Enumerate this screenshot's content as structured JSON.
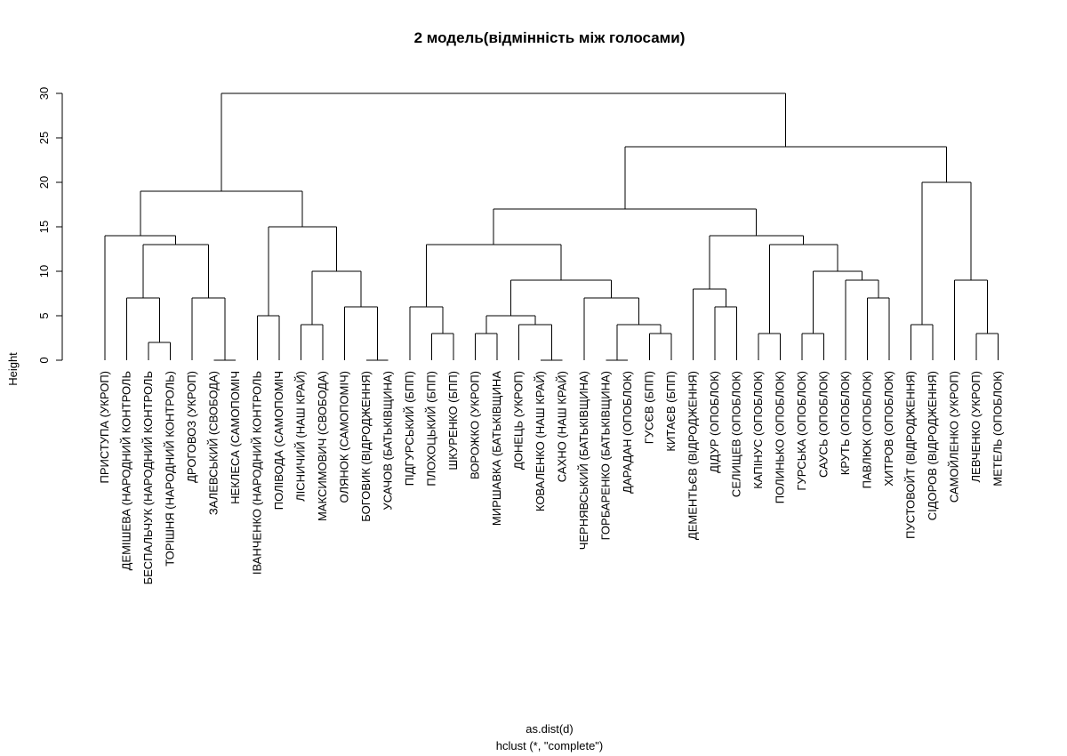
{
  "chart_data": {
    "type": "dendrogram",
    "title": "2 модель(відмінність між голосами)",
    "ylabel": "Height",
    "xlabel": "as.dist(d)",
    "sub": "hclust (*, \"complete\")",
    "ylim": [
      0,
      30
    ],
    "yticks": [
      0,
      5,
      10,
      15,
      20,
      25,
      30
    ],
    "labels": [
      "ПРИСТУПА (УКРОП)",
      "ДЕМІШЕВА (НАРОДНИЙ КОНТРОЛЬ",
      "БЕСПАЛЬЧУК (НАРОДНИЙ КОНТРОЛЬ",
      "ТОРІШНЯ (НАРОДНИЙ КОНТРОЛЬ)",
      "ДРОГОВОЗ (УКРОП)",
      "ЗАЛЕВСЬКИЙ (СВОБОДА)",
      "НЕКЛЕСА (САМОПОМІЧ",
      "ІВАНЧЕНКО (НАРОДНИЙ КОНТРОЛЬ",
      "ПОЛІВОДА (САМОПОМІЧ",
      "ЛІСНИЧИЙ (НАШ КРАЙ)",
      "МАКСИМОВИЧ (СВОБОДА)",
      "ОЛЯНОК (САМОПОМІЧ)",
      "БОГОВИК (ВІДРОДЖЕННЯ)",
      "УСАЧОВ (БАТЬКІВЩИНА)",
      "ПІДГУРСЬКИЙ (БПП)",
      "ПЛОХОЦЬКИЙ (БПП)",
      "ШКУРЕНКО (БПП)",
      "ВОРОЖКО (УКРОП)",
      "МИРШАВКА (БАТЬКІВЩИНА",
      "ДОНЕЦЬ (УКРОП)",
      "КОВАЛЕНКО (НАШ КРАЙ)",
      "САХНО (НАШ КРАЙ)",
      "ЧЕРНЯВСЬКИЙ (БАТЬКІВЩИНА)",
      "ГОРБАРЕНКО (БАТЬКІВЩИНА)",
      "ДАРАДАН (ОПОБЛОК)",
      "ГУСЄВ (БПП)",
      "КИТАЄВ (БПП)",
      "ДЕМЕНТЬЄВ (ВІДРОДЖЕННЯ)",
      "ДІДУР (ОПОБЛОК)",
      "СЕЛИЩЕВ (ОПОБЛОК)",
      "КАПІНУС (ОПОБЛОК)",
      "ПОЛИНЬКО (ОПОБЛОК)",
      "ГУРСЬКА (ОПОБЛОК)",
      "САУСЬ (ОПОБЛОК)",
      "КРУТЬ (ОПОБЛОК)",
      "ПАВЛЮК (ОПОБЛОК)",
      "ХИТРОВ (ОПОБЛОК)",
      "ПУСТОВОЙТ (ВІДРОДЖЕННЯ)",
      "СІДОРОВ (ВІДРОДЖЕННЯ)",
      "САМОЙЛЕНКО (УКРОП)",
      "ЛЕВЧЕНКО (УКРОП)",
      "МЕТЕЛЬ (ОПОБЛОК)"
    ],
    "merges": [
      {
        "id": "c1",
        "left": 2,
        "right": 3,
        "height": 2
      },
      {
        "id": "c2",
        "left": 1,
        "right": "c1",
        "height": 7
      },
      {
        "id": "c3",
        "left": 5,
        "right": 6,
        "height": 0
      },
      {
        "id": "c4",
        "left": 4,
        "right": "c3",
        "height": 7
      },
      {
        "id": "c5",
        "left": "c2",
        "right": "c4",
        "height": 13
      },
      {
        "id": "c6",
        "left": 0,
        "right": "c5",
        "height": 14
      },
      {
        "id": "c7",
        "left": 7,
        "right": 8,
        "height": 5
      },
      {
        "id": "c8",
        "left": 9,
        "right": 10,
        "height": 4
      },
      {
        "id": "c9",
        "left": 12,
        "right": 13,
        "height": 0
      },
      {
        "id": "c10",
        "left": 11,
        "right": "c9",
        "height": 6
      },
      {
        "id": "c11",
        "left": "c8",
        "right": "c10",
        "height": 10
      },
      {
        "id": "c12",
        "left": "c7",
        "right": "c11",
        "height": 15
      },
      {
        "id": "c13",
        "left": "c6",
        "right": "c12",
        "height": 19
      },
      {
        "id": "c14",
        "left": 15,
        "right": 16,
        "height": 3
      },
      {
        "id": "c15",
        "left": 14,
        "right": "c14",
        "height": 6
      },
      {
        "id": "c16",
        "left": 17,
        "right": 18,
        "height": 3
      },
      {
        "id": "c17",
        "left": 20,
        "right": 21,
        "height": 0
      },
      {
        "id": "c18",
        "left": 19,
        "right": "c17",
        "height": 4
      },
      {
        "id": "c19",
        "left": "c16",
        "right": "c18",
        "height": 5
      },
      {
        "id": "c20",
        "left": 23,
        "right": 24,
        "height": 0
      },
      {
        "id": "c21",
        "left": 25,
        "right": 26,
        "height": 3
      },
      {
        "id": "c22",
        "left": "c20",
        "right": "c21",
        "height": 4
      },
      {
        "id": "c23",
        "left": 22,
        "right": "c22",
        "height": 7
      },
      {
        "id": "c24",
        "left": "c19",
        "right": "c23",
        "height": 9
      },
      {
        "id": "c25",
        "left": "c15",
        "right": "c24",
        "height": 13
      },
      {
        "id": "c26",
        "left": 28,
        "right": 29,
        "height": 6
      },
      {
        "id": "c27",
        "left": 27,
        "right": "c26",
        "height": 8
      },
      {
        "id": "c28",
        "left": 30,
        "right": 31,
        "height": 3
      },
      {
        "id": "c29",
        "left": 32,
        "right": 33,
        "height": 3
      },
      {
        "id": "c30",
        "left": 35,
        "right": 36,
        "height": 7
      },
      {
        "id": "c31",
        "left": 34,
        "right": "c30",
        "height": 9
      },
      {
        "id": "c32",
        "left": "c29",
        "right": "c31",
        "height": 10
      },
      {
        "id": "c33",
        "left": "c28",
        "right": "c32",
        "height": 13
      },
      {
        "id": "c34",
        "left": "c27",
        "right": "c33",
        "height": 14
      },
      {
        "id": "c35",
        "left": "c25",
        "right": "c34",
        "height": 17
      },
      {
        "id": "c36",
        "left": 37,
        "right": 38,
        "height": 4
      },
      {
        "id": "c37",
        "left": 40,
        "right": 41,
        "height": 3
      },
      {
        "id": "c38",
        "left": 39,
        "right": "c37",
        "height": 9
      },
      {
        "id": "c39",
        "left": "c36",
        "right": "c38",
        "height": 20
      },
      {
        "id": "c40",
        "left": "c35",
        "right": "c39",
        "height": 24
      },
      {
        "id": "c41",
        "left": "c13",
        "right": "c40",
        "height": 30
      }
    ]
  }
}
